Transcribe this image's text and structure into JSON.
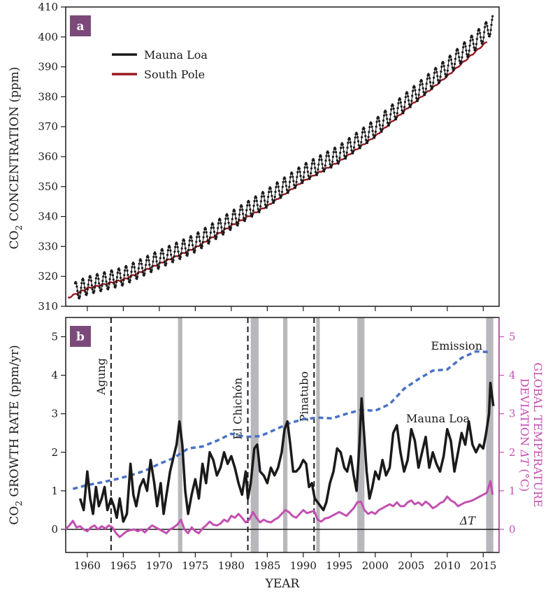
{
  "chart_data": [
    {
      "panel": "a",
      "type": "line",
      "ylabel": "CO2 CONCENTRATION (ppm)",
      "xlim": [
        1957,
        2017.2
      ],
      "ylim": [
        310,
        410
      ],
      "yticks": [
        310,
        320,
        330,
        340,
        350,
        360,
        370,
        380,
        390,
        400,
        410
      ],
      "legend": {
        "placement": "top-left",
        "entries": [
          "Mauna Loa",
          "South Pole"
        ]
      },
      "series": [
        {
          "name": "Mauna Loa",
          "color": "#1a1a1a",
          "note_seasonal_amplitude_ppm": 6,
          "trend": {
            "x": [
              1958.3,
              1960,
              1965,
              1970,
              1975,
              1980,
              1985,
              1990,
              1995,
              2000,
              2005,
              2010,
              2015,
              2016.3
            ],
            "y": [
              315.0,
              316.9,
              320.0,
              325.7,
              331.1,
              338.7,
              346.1,
              354.4,
              360.8,
              369.5,
              379.8,
              389.9,
              401.0,
              404.2
            ]
          }
        },
        {
          "name": "South Pole",
          "color": "#9a1a22",
          "x": [
            1957.3,
            1960,
            1965,
            1970,
            1975,
            1980,
            1985,
            1990,
            1995,
            2000,
            2005,
            2010,
            2015.7
          ],
          "y": [
            312.8,
            316.0,
            318.9,
            324.2,
            329.5,
            336.9,
            343.5,
            351.8,
            358.4,
            366.8,
            377.3,
            386.9,
            398.8
          ]
        }
      ]
    },
    {
      "panel": "b",
      "type": "line",
      "xlabel": "YEAR",
      "ylabel": "CO2 GROWTH RATE (ppm/yr)",
      "ylabel_right": "GLOBAL TEMPERATURE DEVIATION ΔT (°C)",
      "xlim": [
        1957,
        2017.2
      ],
      "xticks": [
        1960,
        1965,
        1970,
        1975,
        1980,
        1985,
        1990,
        1995,
        2000,
        2005,
        2010,
        2015
      ],
      "ylim": [
        -0.6,
        5.5
      ],
      "yticks": [
        0,
        1,
        2,
        3,
        4,
        5
      ],
      "ylim_right": [
        -0.6,
        5.5
      ],
      "yticks_right": [
        0,
        1,
        2,
        3,
        4,
        5
      ],
      "volcanoes": [
        {
          "name": "Agung",
          "year": 1963.3
        },
        {
          "name": "El Chichón",
          "year": 1982.3
        },
        {
          "name": "Pinatubo",
          "year": 1991.5
        }
      ],
      "el_nino_bands": [
        [
          1972.6,
          1973.2
        ],
        [
          1982.7,
          1983.8
        ],
        [
          1987.2,
          1987.8
        ],
        [
          1991.8,
          1992.3
        ],
        [
          1997.5,
          1998.5
        ],
        [
          2015.4,
          2016.4
        ]
      ],
      "annotations": [
        "Emission",
        "Mauna Loa",
        "ΔT"
      ],
      "series": [
        {
          "name": "Emission",
          "color": "#4a72c4",
          "x": [
            1958,
            1960,
            1962,
            1964,
            1966,
            1968,
            1970,
            1972,
            1974,
            1976,
            1978,
            1980,
            1982,
            1984,
            1986,
            1988,
            1990,
            1992,
            1994,
            1996,
            1998,
            2000,
            2002,
            2004,
            2006,
            2008,
            2010,
            2012,
            2014,
            2016
          ],
          "y": [
            1.05,
            1.15,
            1.22,
            1.3,
            1.4,
            1.52,
            1.7,
            1.85,
            2.1,
            2.15,
            2.3,
            2.48,
            2.4,
            2.42,
            2.58,
            2.75,
            2.86,
            2.9,
            2.88,
            3.0,
            3.1,
            3.08,
            3.25,
            3.65,
            3.9,
            4.12,
            4.15,
            4.45,
            4.62,
            4.6
          ]
        },
        {
          "name": "Mauna Loa",
          "color": "#1a1a1a",
          "x": [
            1959.0,
            1959.5,
            1960.0,
            1960.4,
            1960.8,
            1961.2,
            1961.6,
            1962.0,
            1962.4,
            1962.8,
            1963.3,
            1963.7,
            1964.1,
            1964.5,
            1965.0,
            1965.5,
            1966.0,
            1966.4,
            1966.8,
            1967.3,
            1967.8,
            1968.3,
            1968.8,
            1969.3,
            1969.7,
            1970.2,
            1970.6,
            1971.0,
            1971.5,
            1972.0,
            1972.4,
            1972.8,
            1973.2,
            1973.6,
            1974.0,
            1974.5,
            1975.0,
            1975.5,
            1976.0,
            1976.5,
            1977.0,
            1977.5,
            1978.0,
            1978.5,
            1979.0,
            1979.5,
            1980.0,
            1980.5,
            1981.0,
            1981.5,
            1982.0,
            1982.3,
            1982.7,
            1983.2,
            1983.6,
            1984.0,
            1984.5,
            1985.0,
            1985.5,
            1986.0,
            1986.5,
            1987.0,
            1987.4,
            1987.8,
            1988.2,
            1988.6,
            1989.0,
            1989.5,
            1990.0,
            1990.4,
            1990.8,
            1991.2,
            1991.6,
            1992.0,
            1992.4,
            1992.8,
            1993.2,
            1993.7,
            1994.2,
            1994.7,
            1995.2,
            1995.7,
            1996.1,
            1996.6,
            1997.0,
            1997.4,
            1997.8,
            1998.1,
            1998.4,
            1998.8,
            1999.2,
            1999.6,
            2000.0,
            2000.5,
            2001.0,
            2001.5,
            2002.0,
            2002.5,
            2003.0,
            2003.5,
            2004.0,
            2004.5,
            2005.0,
            2005.5,
            2006.0,
            2006.5,
            2007.0,
            2007.5,
            2008.0,
            2008.5,
            2009.0,
            2009.5,
            2010.0,
            2010.5,
            2011.0,
            2011.5,
            2012.0,
            2012.5,
            2013.0,
            2013.5,
            2014.0,
            2014.5,
            2015.0,
            2015.4,
            2015.8,
            2016.0,
            2016.2,
            2016.4
          ],
          "y": [
            0.8,
            0.5,
            1.5,
            0.8,
            0.4,
            1.1,
            0.6,
            0.8,
            1.1,
            0.5,
            0.8,
            0.6,
            0.3,
            0.8,
            0.2,
            0.4,
            1.7,
            0.9,
            0.6,
            1.1,
            1.3,
            1.0,
            1.8,
            1.2,
            0.6,
            1.2,
            0.4,
            0.9,
            1.5,
            1.9,
            2.2,
            2.8,
            2.2,
            1.0,
            0.4,
            0.9,
            1.3,
            0.8,
            1.7,
            1.2,
            2.0,
            1.8,
            1.4,
            1.6,
            2.0,
            1.7,
            1.9,
            1.6,
            1.2,
            0.9,
            1.5,
            0.8,
            1.2,
            2.1,
            2.2,
            1.5,
            1.4,
            1.2,
            1.6,
            1.4,
            1.6,
            2.0,
            2.6,
            2.8,
            2.2,
            1.5,
            1.5,
            1.6,
            1.8,
            1.7,
            1.1,
            1.2,
            0.8,
            0.7,
            0.6,
            0.5,
            0.7,
            1.2,
            1.5,
            2.1,
            2.0,
            1.6,
            1.5,
            1.9,
            1.4,
            1.0,
            2.2,
            3.4,
            2.6,
            1.5,
            0.8,
            1.1,
            1.5,
            1.3,
            1.8,
            1.4,
            1.6,
            2.5,
            2.7,
            2.0,
            1.5,
            1.8,
            2.6,
            2.3,
            1.6,
            2.0,
            2.4,
            1.6,
            2.0,
            1.7,
            1.5,
            1.9,
            2.6,
            2.3,
            1.5,
            2.0,
            2.5,
            2.2,
            2.8,
            2.2,
            2.0,
            2.2,
            2.1,
            2.5,
            3.0,
            3.8,
            3.5,
            3.2
          ]
        },
        {
          "name": "ΔT",
          "color": "#c250b0",
          "x": [
            1957.0,
            1957.5,
            1958.0,
            1958.5,
            1959.0,
            1959.5,
            1960.0,
            1960.5,
            1961.0,
            1961.5,
            1962.0,
            1962.5,
            1963.0,
            1963.5,
            1964.0,
            1964.5,
            1965.0,
            1965.5,
            1966.0,
            1966.5,
            1967.0,
            1967.5,
            1968.0,
            1968.5,
            1969.0,
            1969.5,
            1970.0,
            1970.5,
            1971.0,
            1971.5,
            1972.0,
            1972.5,
            1973.0,
            1973.5,
            1974.0,
            1974.5,
            1975.0,
            1975.5,
            1976.0,
            1976.5,
            1977.0,
            1977.5,
            1978.0,
            1978.5,
            1979.0,
            1979.5,
            1980.0,
            1980.5,
            1981.0,
            1981.5,
            1982.0,
            1982.5,
            1983.0,
            1983.5,
            1984.0,
            1984.5,
            1985.0,
            1985.5,
            1986.0,
            1986.5,
            1987.0,
            1987.5,
            1988.0,
            1988.5,
            1989.0,
            1989.5,
            1990.0,
            1990.5,
            1991.0,
            1991.5,
            1992.0,
            1992.5,
            1993.0,
            1993.5,
            1994.0,
            1994.5,
            1995.0,
            1995.5,
            1996.0,
            1996.5,
            1997.0,
            1997.5,
            1998.0,
            1998.5,
            1999.0,
            1999.5,
            2000.0,
            2000.5,
            2001.0,
            2001.5,
            2002.0,
            2002.5,
            2003.0,
            2003.5,
            2004.0,
            2004.5,
            2005.0,
            2005.5,
            2006.0,
            2006.5,
            2007.0,
            2007.5,
            2008.0,
            2008.5,
            2009.0,
            2009.5,
            2010.0,
            2010.5,
            2011.0,
            2011.5,
            2012.0,
            2012.5,
            2013.0,
            2013.5,
            2014.0,
            2014.5,
            2015.0,
            2015.5,
            2016.0,
            2016.3
          ],
          "y": [
            0.0,
            0.1,
            0.22,
            0.05,
            0.08,
            0.0,
            -0.05,
            0.05,
            0.1,
            0.0,
            0.08,
            0.02,
            0.1,
            0.05,
            -0.1,
            -0.2,
            -0.12,
            -0.05,
            -0.02,
            0.0,
            -0.05,
            0.0,
            -0.08,
            0.02,
            0.1,
            0.05,
            0.0,
            -0.05,
            -0.1,
            0.0,
            0.05,
            0.12,
            0.25,
            0.0,
            -0.1,
            0.05,
            -0.05,
            -0.1,
            0.02,
            0.1,
            0.2,
            0.12,
            0.1,
            0.15,
            0.25,
            0.2,
            0.35,
            0.3,
            0.4,
            0.3,
            0.18,
            0.25,
            0.45,
            0.3,
            0.18,
            0.25,
            0.2,
            0.18,
            0.25,
            0.3,
            0.4,
            0.5,
            0.45,
            0.35,
            0.3,
            0.4,
            0.5,
            0.42,
            0.45,
            0.48,
            0.25,
            0.2,
            0.28,
            0.3,
            0.35,
            0.4,
            0.45,
            0.4,
            0.35,
            0.45,
            0.55,
            0.7,
            0.72,
            0.5,
            0.4,
            0.45,
            0.4,
            0.5,
            0.55,
            0.6,
            0.65,
            0.6,
            0.7,
            0.6,
            0.6,
            0.7,
            0.75,
            0.65,
            0.7,
            0.62,
            0.72,
            0.65,
            0.55,
            0.6,
            0.68,
            0.72,
            0.85,
            0.75,
            0.7,
            0.6,
            0.65,
            0.7,
            0.72,
            0.75,
            0.8,
            0.85,
            0.9,
            0.95,
            1.25,
            0.9
          ]
        }
      ]
    }
  ]
}
